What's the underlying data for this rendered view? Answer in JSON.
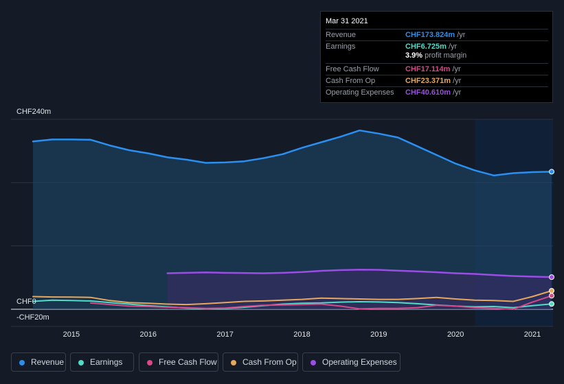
{
  "chart_data": {
    "type": "area",
    "currency_unit": "CHF",
    "y_axis": {
      "max_label": "CHF240m",
      "zero_label": "CHF0",
      "min_label": "-CHF20m",
      "ylim": [
        -20,
        240
      ]
    },
    "x_ticks": [
      "2015",
      "2016",
      "2017",
      "2018",
      "2019",
      "2020",
      "2021"
    ],
    "xlim": [
      2014.5,
      2021.25
    ],
    "grid": true,
    "highlight_start": 2020.25,
    "series": [
      {
        "name": "Revenue",
        "color": "#2a8ff0",
        "fill": true,
        "points": [
          [
            2014.5,
            212
          ],
          [
            2014.75,
            214.5
          ],
          [
            2015.0,
            214.5
          ],
          [
            2015.25,
            214.2
          ],
          [
            2015.5,
            207
          ],
          [
            2015.75,
            201
          ],
          [
            2016.0,
            197
          ],
          [
            2016.25,
            192
          ],
          [
            2016.5,
            189
          ],
          [
            2016.75,
            185
          ],
          [
            2017.0,
            185.5
          ],
          [
            2017.25,
            187
          ],
          [
            2017.5,
            191
          ],
          [
            2017.75,
            196
          ],
          [
            2018.0,
            204
          ],
          [
            2018.25,
            211
          ],
          [
            2018.5,
            218
          ],
          [
            2018.75,
            226
          ],
          [
            2019.0,
            222
          ],
          [
            2019.25,
            217
          ],
          [
            2019.5,
            206
          ],
          [
            2019.75,
            195
          ],
          [
            2020.0,
            184
          ],
          [
            2020.25,
            175.5
          ],
          [
            2020.5,
            169
          ],
          [
            2020.75,
            172
          ],
          [
            2021.0,
            173.3
          ],
          [
            2021.25,
            173.8
          ]
        ]
      },
      {
        "name": "Operating Expenses",
        "color": "#9b4de6",
        "fill": true,
        "points": [
          [
            2016.25,
            45.5
          ],
          [
            2016.5,
            46
          ],
          [
            2016.75,
            46.5
          ],
          [
            2017.0,
            46
          ],
          [
            2017.25,
            45.8
          ],
          [
            2017.5,
            45.5
          ],
          [
            2017.75,
            46
          ],
          [
            2018.0,
            47
          ],
          [
            2018.25,
            48.5
          ],
          [
            2018.5,
            49.5
          ],
          [
            2018.75,
            50
          ],
          [
            2019.0,
            49.8
          ],
          [
            2019.25,
            48.8
          ],
          [
            2019.5,
            47.8
          ],
          [
            2019.75,
            46.8
          ],
          [
            2020.0,
            45.5
          ],
          [
            2020.25,
            44.6
          ],
          [
            2020.5,
            43.2
          ],
          [
            2020.75,
            42
          ],
          [
            2021.0,
            41.2
          ],
          [
            2021.25,
            40.6
          ]
        ]
      },
      {
        "name": "Earnings",
        "color": "#52dcc8",
        "fill": false,
        "points": [
          [
            2014.5,
            10
          ],
          [
            2014.75,
            11.5
          ],
          [
            2015.0,
            11
          ],
          [
            2015.25,
            10.5
          ],
          [
            2015.5,
            8.5
          ],
          [
            2015.75,
            6.5
          ],
          [
            2016.0,
            4.5
          ],
          [
            2016.25,
            3
          ],
          [
            2016.5,
            1.5
          ],
          [
            2016.75,
            0.5
          ],
          [
            2017.0,
            1
          ],
          [
            2017.25,
            2.5
          ],
          [
            2017.5,
            4.5
          ],
          [
            2017.75,
            6.5
          ],
          [
            2018.0,
            7.5
          ],
          [
            2018.25,
            8
          ],
          [
            2018.5,
            9
          ],
          [
            2018.75,
            9.5
          ],
          [
            2019.0,
            9.2
          ],
          [
            2019.25,
            8.5
          ],
          [
            2019.5,
            7
          ],
          [
            2019.75,
            5.5
          ],
          [
            2020.0,
            4
          ],
          [
            2020.25,
            3
          ],
          [
            2020.5,
            3.5
          ],
          [
            2020.75,
            2
          ],
          [
            2021.0,
            4.5
          ],
          [
            2021.25,
            6.7
          ]
        ]
      },
      {
        "name": "Free Cash Flow",
        "color": "#d94888",
        "fill": false,
        "points": [
          [
            2015.25,
            8
          ],
          [
            2015.5,
            6
          ],
          [
            2015.75,
            4
          ],
          [
            2016.0,
            3.5
          ],
          [
            2016.25,
            2.5
          ],
          [
            2016.5,
            2
          ],
          [
            2016.75,
            1
          ],
          [
            2017.0,
            1.5
          ],
          [
            2017.25,
            3.5
          ],
          [
            2017.5,
            5
          ],
          [
            2017.75,
            5.5
          ],
          [
            2018.0,
            6
          ],
          [
            2018.25,
            6.5
          ],
          [
            2018.5,
            4
          ],
          [
            2018.75,
            0.5
          ],
          [
            2019.0,
            1
          ],
          [
            2019.25,
            1
          ],
          [
            2019.5,
            2
          ],
          [
            2019.75,
            5
          ],
          [
            2020.0,
            4
          ],
          [
            2020.25,
            2
          ],
          [
            2020.5,
            1
          ],
          [
            2020.75,
            0
          ],
          [
            2021.0,
            9
          ],
          [
            2021.25,
            17.1
          ]
        ]
      },
      {
        "name": "Cash From Op",
        "color": "#e8a85c",
        "fill": false,
        "points": [
          [
            2014.5,
            16
          ],
          [
            2014.75,
            15.5
          ],
          [
            2015.0,
            15.3
          ],
          [
            2015.25,
            15
          ],
          [
            2015.5,
            11
          ],
          [
            2015.75,
            8.5
          ],
          [
            2016.0,
            7.5
          ],
          [
            2016.25,
            6.5
          ],
          [
            2016.5,
            6
          ],
          [
            2016.75,
            7
          ],
          [
            2017.0,
            8.5
          ],
          [
            2017.25,
            10
          ],
          [
            2017.5,
            10.5
          ],
          [
            2017.75,
            11.5
          ],
          [
            2018.0,
            12.5
          ],
          [
            2018.25,
            14
          ],
          [
            2018.5,
            13.5
          ],
          [
            2018.75,
            13
          ],
          [
            2019.0,
            12.5
          ],
          [
            2019.25,
            12.5
          ],
          [
            2019.5,
            13.5
          ],
          [
            2019.75,
            15
          ],
          [
            2020.0,
            13
          ],
          [
            2020.25,
            11.5
          ],
          [
            2020.5,
            11
          ],
          [
            2020.75,
            10
          ],
          [
            2021.0,
            16
          ],
          [
            2021.25,
            23.4
          ]
        ]
      }
    ]
  },
  "tooltip": {
    "date": "Mar 31 2021",
    "rows": [
      {
        "label": "Revenue",
        "value": "CHF173.824m",
        "unit": "/yr",
        "color": "#2a8ff0"
      },
      {
        "label": "Earnings",
        "value": "CHF6.725m",
        "unit": "/yr",
        "color": "#52dcc8"
      },
      {
        "label": "Free Cash Flow",
        "value": "CHF17.114m",
        "unit": "/yr",
        "color": "#d94888"
      },
      {
        "label": "Cash From Op",
        "value": "CHF23.371m",
        "unit": "/yr",
        "color": "#e8a85c"
      },
      {
        "label": "Operating Expenses",
        "value": "CHF40.610m",
        "unit": "/yr",
        "color": "#9b4de6"
      }
    ],
    "margin_value": "3.9%",
    "margin_text": "profit margin"
  },
  "legend": [
    {
      "label": "Revenue",
      "color": "#2a8ff0"
    },
    {
      "label": "Earnings",
      "color": "#52dcc8"
    },
    {
      "label": "Free Cash Flow",
      "color": "#d94888"
    },
    {
      "label": "Cash From Op",
      "color": "#e8a85c"
    },
    {
      "label": "Operating Expenses",
      "color": "#9b4de6"
    }
  ]
}
